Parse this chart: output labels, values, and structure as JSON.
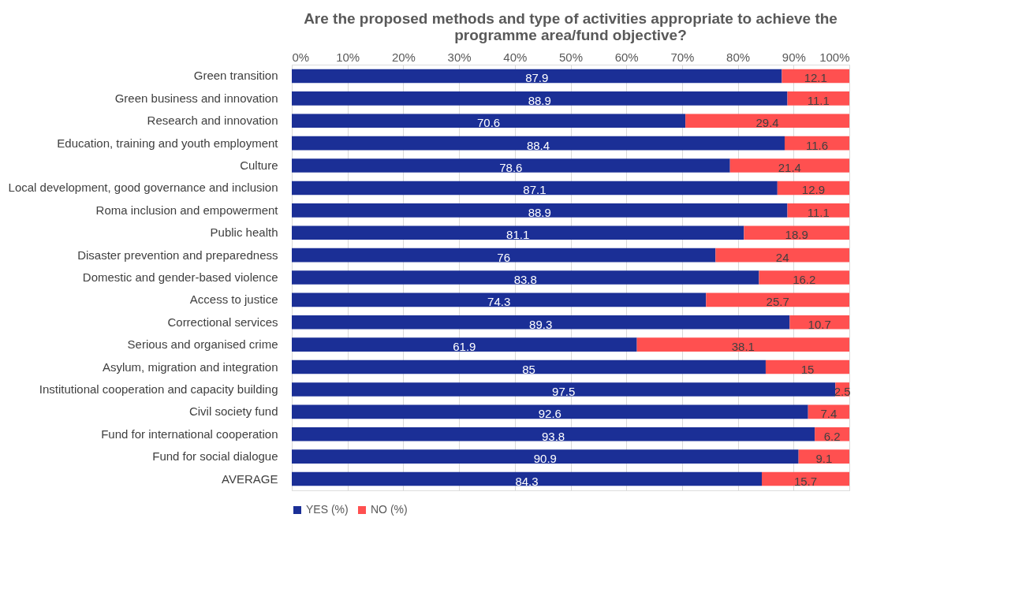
{
  "chart_data": {
    "type": "bar",
    "orientation": "horizontal",
    "stacked": true,
    "data_labels": true,
    "title": "Are the proposed methods and type of activities appropriate to achieve the programme area/fund objective?",
    "categories": [
      "Green transition",
      "Green business and innovation",
      "Research and innovation",
      "Education, training and youth employment",
      "Culture",
      "Local development, good governance and inclusion",
      "Roma inclusion and empowerment",
      "Public health",
      "Disaster prevention and preparedness",
      "Domestic and gender-based violence",
      "Access to justice",
      "Correctional services",
      "Serious and organised crime",
      "Asylum, migration and integration",
      "Institutional cooperation and capacity building",
      "Civil society fund",
      "Fund for international cooperation",
      "Fund for social dialogue",
      "AVERAGE"
    ],
    "series": [
      {
        "name": "YES (%)",
        "color": "#1b2f96",
        "values": [
          87.9,
          88.9,
          70.6,
          88.4,
          78.6,
          87.1,
          88.9,
          81.1,
          76,
          83.8,
          74.3,
          89.3,
          61.9,
          85,
          97.5,
          92.6,
          93.8,
          90.9,
          84.3
        ]
      },
      {
        "name": "NO (%)",
        "color": "#ff5050",
        "values": [
          12.1,
          11.1,
          29.4,
          11.6,
          21.4,
          12.9,
          11.1,
          18.9,
          24,
          16.2,
          25.7,
          10.7,
          38.1,
          15,
          2.5,
          7.4,
          6.2,
          9.1,
          15.7
        ]
      }
    ],
    "xlim": [
      0,
      100
    ],
    "xticks": [
      {
        "value": 0,
        "label": "0%"
      },
      {
        "value": 10,
        "label": "10%"
      },
      {
        "value": 20,
        "label": "20%"
      },
      {
        "value": 30,
        "label": "30%"
      },
      {
        "value": 40,
        "label": "40%"
      },
      {
        "value": 50,
        "label": "50%"
      },
      {
        "value": 60,
        "label": "60%"
      },
      {
        "value": 70,
        "label": "70%"
      },
      {
        "value": 80,
        "label": "80%"
      },
      {
        "value": 90,
        "label": "90%"
      },
      {
        "value": 100,
        "label": "100%"
      }
    ],
    "grid": "x",
    "legend": "bottom"
  }
}
